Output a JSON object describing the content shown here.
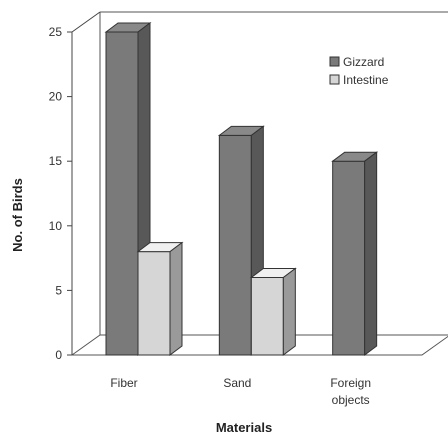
{
  "chart_data": {
    "type": "bar",
    "title": "",
    "xlabel": "Materials",
    "ylabel": "No. of Birds",
    "ylim": [
      0,
      25
    ],
    "yticks": [
      0,
      5,
      10,
      15,
      20,
      25
    ],
    "categories": [
      "Fiber",
      "Sand",
      "Foreign objects"
    ],
    "series": [
      {
        "name": "Gizzard",
        "values": [
          25,
          17,
          15
        ],
        "color": "#7a7a7a"
      },
      {
        "name": "Intestine",
        "values": [
          8,
          6,
          0
        ],
        "color": "#d6d6d6"
      }
    ],
    "legend": "top-right",
    "grid": false,
    "style": "3d"
  }
}
